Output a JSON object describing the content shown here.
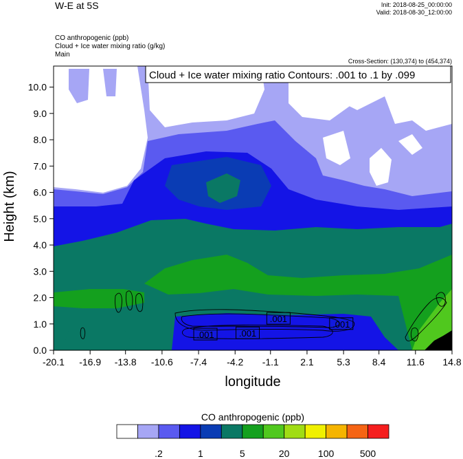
{
  "header": {
    "title": "W-E at 5S",
    "init": "Init: 2018-08-25_00:00:00",
    "valid": "Valid: 2018-08-30_12:00:00",
    "fields": [
      "CO anthropogenic   (ppb)",
      "Cloud + Ice water mixing ratio   (g/kg)",
      "Main"
    ],
    "cross_section": "Cross-Section: (130,374) to (454,374)"
  },
  "chart_data": {
    "type": "heatmap",
    "title": "W-E at 5S",
    "contour_label": "Cloud + Ice water mixing ratio Contours: .001 to .1 by .099",
    "xlabel": "longitude",
    "ylabel": "Height (km)",
    "xlim": [
      -20.1,
      14.8
    ],
    "ylim": [
      0,
      10.8
    ],
    "x_ticks": [
      "-20.1",
      "-16.9",
      "-13.8",
      "-10.6",
      "-7.4",
      "-4.2",
      "-1.1",
      "2.1",
      "5.3",
      "8.4",
      "11.6",
      "14.8"
    ],
    "y_ticks": [
      "0.0",
      "1.0",
      "2.0",
      "3.0",
      "4.0",
      "5.0",
      "6.0",
      "7.0",
      "8.0",
      "9.0",
      "10.0"
    ],
    "contour_labels": [
      {
        "text": ".001",
        "x": -6.8,
        "y": 0.6
      },
      {
        "text": ".001",
        "x": -3.1,
        "y": 0.65
      },
      {
        "text": ".001",
        "x": -0.4,
        "y": 1.2
      },
      {
        "text": ".001",
        "x": 5.1,
        "y": 1.0
      }
    ],
    "colorbar": {
      "title": "CO anthropogenic  (ppb)",
      "colors": [
        "#ffffff",
        "#a6a6f5",
        "#5a5af0",
        "#1414e6",
        "#0a3cb4",
        "#0a7864",
        "#14a01e",
        "#50c81e",
        "#a0dc14",
        "#f0f000",
        "#f5b400",
        "#f56414",
        "#f51e1e"
      ],
      "labels": [
        ".2",
        "1",
        "5",
        "20",
        "100",
        "500"
      ]
    }
  }
}
